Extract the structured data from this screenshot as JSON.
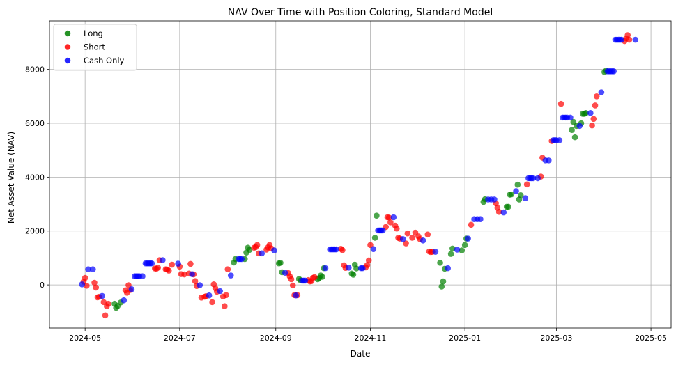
{
  "chart_data": {
    "type": "scatter",
    "title": "NAV Over Time with Position Coloring, Standard Model",
    "xlabel": "Date",
    "ylabel": "Net Asset Value (NAV)",
    "xlim": [
      "2024-04-08",
      "2025-05-14"
    ],
    "ylim": [
      -1600,
      9800
    ],
    "grid": true,
    "legend": "top-left",
    "x_ticks": [
      "2024-05",
      "2024-07",
      "2024-09",
      "2024-11",
      "2025-01",
      "2025-03",
      "2025-05"
    ],
    "y_ticks": [
      0,
      2000,
      4000,
      6000,
      8000
    ],
    "colors": {
      "Long": "#008000",
      "Short": "#ff0000",
      "Cash Only": "#0000ff"
    },
    "series": [
      {
        "name": "Long",
        "points": [
          [
            "2024-05-20",
            -700
          ],
          [
            "2024-05-21",
            -850
          ],
          [
            "2024-05-22",
            -780
          ],
          [
            "2024-05-24",
            -650
          ],
          [
            "2024-08-05",
            830
          ],
          [
            "2024-08-06",
            960
          ],
          [
            "2024-08-12",
            960
          ],
          [
            "2024-08-13",
            1200
          ],
          [
            "2024-08-14",
            1380
          ],
          [
            "2024-08-15",
            1300
          ],
          [
            "2024-09-03",
            800
          ],
          [
            "2024-09-04",
            820
          ],
          [
            "2024-09-05",
            470
          ],
          [
            "2024-09-16",
            220
          ],
          [
            "2024-09-17",
            170
          ],
          [
            "2024-09-28",
            210
          ],
          [
            "2024-09-29",
            260
          ],
          [
            "2024-09-30",
            350
          ],
          [
            "2024-10-01",
            300
          ],
          [
            "2024-10-02",
            620
          ],
          [
            "2024-10-20",
            420
          ],
          [
            "2024-10-21",
            380
          ],
          [
            "2024-10-22",
            750
          ],
          [
            "2024-10-23",
            610
          ],
          [
            "2024-11-04",
            1750
          ],
          [
            "2024-11-05",
            2570
          ],
          [
            "2024-12-16",
            820
          ],
          [
            "2024-12-17",
            -60
          ],
          [
            "2024-12-18",
            130
          ],
          [
            "2024-12-19",
            600
          ],
          [
            "2024-12-23",
            1150
          ],
          [
            "2024-12-24",
            1350
          ],
          [
            "2024-12-30",
            1280
          ],
          [
            "2025-01-01",
            1480
          ],
          [
            "2025-01-02",
            1720
          ],
          [
            "2025-01-13",
            3080
          ],
          [
            "2025-01-14",
            3180
          ],
          [
            "2025-01-28",
            2900
          ],
          [
            "2025-01-29",
            2900
          ],
          [
            "2025-01-30",
            3350
          ],
          [
            "2025-01-31",
            3360
          ],
          [
            "2025-02-04",
            3720
          ],
          [
            "2025-02-05",
            3170
          ],
          [
            "2025-02-06",
            3330
          ],
          [
            "2025-03-11",
            5750
          ],
          [
            "2025-03-12",
            6050
          ],
          [
            "2025-03-13",
            5480
          ],
          [
            "2025-03-14",
            5900
          ],
          [
            "2025-03-17",
            6000
          ],
          [
            "2025-03-18",
            6350
          ],
          [
            "2025-03-19",
            6350
          ],
          [
            "2025-03-20",
            6380
          ],
          [
            "2025-04-01",
            7900
          ],
          [
            "2025-04-02",
            7950
          ]
        ]
      },
      {
        "name": "Short",
        "points": [
          [
            "2024-04-30",
            120
          ],
          [
            "2024-05-01",
            260
          ],
          [
            "2024-05-02",
            -30
          ],
          [
            "2024-05-07",
            80
          ],
          [
            "2024-05-08",
            -100
          ],
          [
            "2024-05-09",
            -460
          ],
          [
            "2024-05-10",
            -440
          ],
          [
            "2024-05-13",
            -640
          ],
          [
            "2024-05-14",
            -1130
          ],
          [
            "2024-05-15",
            -790
          ],
          [
            "2024-05-16",
            -700
          ],
          [
            "2024-05-27",
            -200
          ],
          [
            "2024-05-28",
            -290
          ],
          [
            "2024-05-29",
            -10
          ],
          [
            "2024-05-30",
            -190
          ],
          [
            "2024-06-15",
            610
          ],
          [
            "2024-06-16",
            600
          ],
          [
            "2024-06-17",
            640
          ],
          [
            "2024-06-18",
            920
          ],
          [
            "2024-06-22",
            580
          ],
          [
            "2024-06-23",
            570
          ],
          [
            "2024-06-24",
            530
          ],
          [
            "2024-06-26",
            750
          ],
          [
            "2024-07-01",
            680
          ],
          [
            "2024-07-02",
            400
          ],
          [
            "2024-07-04",
            390
          ],
          [
            "2024-07-07",
            420
          ],
          [
            "2024-07-08",
            780
          ],
          [
            "2024-07-10",
            390
          ],
          [
            "2024-07-11",
            140
          ],
          [
            "2024-07-12",
            -40
          ],
          [
            "2024-07-15",
            -470
          ],
          [
            "2024-07-17",
            -440
          ],
          [
            "2024-07-18",
            -420
          ],
          [
            "2024-07-22",
            -640
          ],
          [
            "2024-07-23",
            20
          ],
          [
            "2024-07-24",
            -120
          ],
          [
            "2024-07-25",
            -250
          ],
          [
            "2024-07-29",
            -430
          ],
          [
            "2024-07-30",
            -790
          ],
          [
            "2024-07-31",
            -380
          ],
          [
            "2024-08-01",
            580
          ],
          [
            "2024-08-18",
            1380
          ],
          [
            "2024-08-19",
            1400
          ],
          [
            "2024-08-20",
            1480
          ],
          [
            "2024-08-21",
            1170
          ],
          [
            "2024-08-26",
            1310
          ],
          [
            "2024-08-27",
            1390
          ],
          [
            "2024-08-28",
            1480
          ],
          [
            "2024-08-29",
            1360
          ],
          [
            "2024-09-09",
            440
          ],
          [
            "2024-09-10",
            320
          ],
          [
            "2024-09-11",
            210
          ],
          [
            "2024-09-12",
            -20
          ],
          [
            "2024-09-13",
            -380
          ],
          [
            "2024-09-15",
            -380
          ],
          [
            "2024-09-22",
            180
          ],
          [
            "2024-09-23",
            130
          ],
          [
            "2024-09-24",
            140
          ],
          [
            "2024-09-25",
            260
          ],
          [
            "2024-09-26",
            290
          ],
          [
            "2024-10-13",
            1340
          ],
          [
            "2024-10-14",
            1290
          ],
          [
            "2024-10-15",
            730
          ],
          [
            "2024-10-16",
            630
          ],
          [
            "2024-10-29",
            650
          ],
          [
            "2024-10-30",
            740
          ],
          [
            "2024-10-31",
            910
          ],
          [
            "2024-11-01",
            1480
          ],
          [
            "2024-11-11",
            2150
          ],
          [
            "2024-11-12",
            2510
          ],
          [
            "2024-11-13",
            2500
          ],
          [
            "2024-11-14",
            2320
          ],
          [
            "2024-11-17",
            2200
          ],
          [
            "2024-11-18",
            2090
          ],
          [
            "2024-11-19",
            1750
          ],
          [
            "2024-11-20",
            1720
          ],
          [
            "2024-11-24",
            1540
          ],
          [
            "2024-11-25",
            1910
          ],
          [
            "2024-11-28",
            1750
          ],
          [
            "2024-11-30",
            1940
          ],
          [
            "2024-12-02",
            1800
          ],
          [
            "2024-12-03",
            1700
          ],
          [
            "2024-12-08",
            1870
          ],
          [
            "2024-12-09",
            1240
          ],
          [
            "2024-12-10",
            1220
          ],
          [
            "2024-12-11",
            1230
          ],
          [
            "2025-01-05",
            2230
          ],
          [
            "2025-01-21",
            3030
          ],
          [
            "2025-01-22",
            2860
          ],
          [
            "2025-01-23",
            2710
          ],
          [
            "2025-02-10",
            3730
          ],
          [
            "2025-02-19",
            4020
          ],
          [
            "2025-02-20",
            4720
          ],
          [
            "2025-02-26",
            5340
          ],
          [
            "2025-03-04",
            6720
          ],
          [
            "2025-03-24",
            5920
          ],
          [
            "2025-03-25",
            6160
          ],
          [
            "2025-03-26",
            6660
          ],
          [
            "2025-03-27",
            7000
          ],
          [
            "2025-04-14",
            9050
          ],
          [
            "2025-04-15",
            9150
          ],
          [
            "2025-04-16",
            9270
          ],
          [
            "2025-04-17",
            9100
          ]
        ]
      },
      {
        "name": "Cash Only",
        "points": [
          [
            "2024-04-29",
            20
          ],
          [
            "2024-05-03",
            580
          ],
          [
            "2024-05-06",
            580
          ],
          [
            "2024-05-12",
            -410
          ],
          [
            "2024-05-26",
            -570
          ],
          [
            "2024-05-31",
            -160
          ],
          [
            "2024-06-02",
            320
          ],
          [
            "2024-06-03",
            320
          ],
          [
            "2024-06-04",
            320
          ],
          [
            "2024-06-05",
            320
          ],
          [
            "2024-06-07",
            320
          ],
          [
            "2024-06-09",
            800
          ],
          [
            "2024-06-10",
            800
          ],
          [
            "2024-06-11",
            800
          ],
          [
            "2024-06-12",
            800
          ],
          [
            "2024-06-13",
            800
          ],
          [
            "2024-06-20",
            920
          ],
          [
            "2024-06-30",
            790
          ],
          [
            "2024-07-09",
            400
          ],
          [
            "2024-07-14",
            -10
          ],
          [
            "2024-07-20",
            -390
          ],
          [
            "2024-07-27",
            -230
          ],
          [
            "2024-08-03",
            350
          ],
          [
            "2024-08-08",
            960
          ],
          [
            "2024-08-09",
            960
          ],
          [
            "2024-08-10",
            960
          ],
          [
            "2024-08-23",
            1170
          ],
          [
            "2024-08-31",
            1280
          ],
          [
            "2024-09-07",
            450
          ],
          [
            "2024-09-14",
            -390
          ],
          [
            "2024-09-18",
            160
          ],
          [
            "2024-09-19",
            160
          ],
          [
            "2024-09-20",
            160
          ],
          [
            "2024-10-03",
            620
          ],
          [
            "2024-10-06",
            1320
          ],
          [
            "2024-10-07",
            1320
          ],
          [
            "2024-10-08",
            1320
          ],
          [
            "2024-10-09",
            1320
          ],
          [
            "2024-10-10",
            1320
          ],
          [
            "2024-10-18",
            640
          ],
          [
            "2024-10-26",
            620
          ],
          [
            "2024-10-27",
            620
          ],
          [
            "2024-11-03",
            1330
          ],
          [
            "2024-11-06",
            2020
          ],
          [
            "2024-11-07",
            2020
          ],
          [
            "2024-11-08",
            2020
          ],
          [
            "2024-11-09",
            2020
          ],
          [
            "2024-11-16",
            2510
          ],
          [
            "2024-11-22",
            1700
          ],
          [
            "2024-12-05",
            1650
          ],
          [
            "2024-12-13",
            1230
          ],
          [
            "2024-12-21",
            620
          ],
          [
            "2024-12-27",
            1310
          ],
          [
            "2025-01-03",
            1720
          ],
          [
            "2025-01-07",
            2440
          ],
          [
            "2025-01-09",
            2440
          ],
          [
            "2025-01-11",
            2440
          ],
          [
            "2025-01-16",
            3170
          ],
          [
            "2025-01-18",
            3170
          ],
          [
            "2025-01-20",
            3170
          ],
          [
            "2025-01-26",
            2690
          ],
          [
            "2025-02-03",
            3480
          ],
          [
            "2025-02-09",
            3220
          ],
          [
            "2025-02-11",
            3960
          ],
          [
            "2025-02-12",
            3960
          ],
          [
            "2025-02-13",
            3960
          ],
          [
            "2025-02-14",
            3960
          ],
          [
            "2025-02-17",
            3960
          ],
          [
            "2025-02-22",
            4620
          ],
          [
            "2025-02-24",
            4620
          ],
          [
            "2025-02-27",
            5370
          ],
          [
            "2025-02-28",
            5370
          ],
          [
            "2025-03-01",
            5370
          ],
          [
            "2025-03-03",
            5370
          ],
          [
            "2025-03-05",
            6210
          ],
          [
            "2025-03-06",
            6210
          ],
          [
            "2025-03-07",
            6210
          ],
          [
            "2025-03-08",
            6210
          ],
          [
            "2025-03-10",
            6210
          ],
          [
            "2025-03-16",
            5900
          ],
          [
            "2025-03-23",
            6380
          ],
          [
            "2025-03-30",
            7150
          ],
          [
            "2025-04-03",
            7930
          ],
          [
            "2025-04-04",
            7930
          ],
          [
            "2025-04-05",
            7930
          ],
          [
            "2025-04-06",
            7930
          ],
          [
            "2025-04-07",
            7930
          ],
          [
            "2025-04-08",
            9100
          ],
          [
            "2025-04-09",
            9100
          ],
          [
            "2025-04-10",
            9100
          ],
          [
            "2025-04-11",
            9100
          ],
          [
            "2025-04-12",
            9100
          ],
          [
            "2025-04-21",
            9100
          ]
        ]
      }
    ]
  }
}
